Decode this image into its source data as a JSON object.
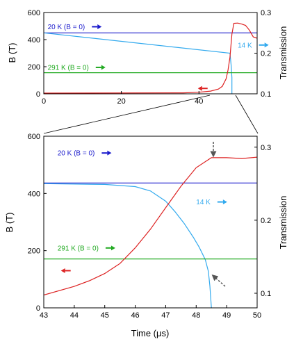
{
  "chart_data": [
    {
      "type": "line",
      "panel": "top",
      "xlabel": "",
      "ylabel": "B (T)",
      "y2label": "Transmission",
      "xlim": [
        0,
        55
      ],
      "ylim": [
        0,
        600
      ],
      "y2lim": [
        0.1,
        0.3
      ],
      "x_ticks": [
        0,
        20,
        40
      ],
      "x_tick_labels": [
        "0",
        "20",
        "40"
      ],
      "y_ticks": [
        0,
        200,
        400,
        600
      ],
      "y_tick_labels": [
        "0",
        "200",
        "400",
        "600"
      ],
      "y2_ticks": [
        0.1,
        0.2,
        0.3
      ],
      "y2_tick_labels": [
        "0.1",
        "0.2",
        "0.3"
      ],
      "series": [
        {
          "name": "20 K (B = 0)",
          "axis": "right",
          "color": "#1a1acc",
          "x": [
            0,
            55
          ],
          "y": [
            0.25,
            0.25
          ]
        },
        {
          "name": "",
          "axis": "right",
          "color": "#33aaee",
          "x": [
            0,
            48.0,
            48.3,
            48.5,
            48.5
          ],
          "y": [
            0.25,
            0.2,
            0.17,
            0.14,
            0.1
          ]
        },
        {
          "name": "291 K (B = 0)",
          "axis": "right",
          "color": "#22aa22",
          "x": [
            0,
            55
          ],
          "y": [
            0.152,
            0.152
          ]
        },
        {
          "name": "",
          "axis": "left",
          "color": "#dd2222",
          "x": [
            0,
            36,
            40,
            43,
            45,
            46,
            47,
            47.5,
            48,
            48.5,
            49,
            50,
            51,
            52,
            53,
            54,
            55
          ],
          "y": [
            5,
            7,
            12,
            20,
            35,
            55,
            110,
            175,
            270,
            440,
            520,
            522,
            515,
            505,
            470,
            420,
            410
          ]
        }
      ],
      "annotations": [
        {
          "text": "20 K (B = 0)",
          "x": 1,
          "y": 0.265,
          "color": "#1a1acc",
          "arrow": "right"
        },
        {
          "text": "291 K (B = 0)",
          "x": 1,
          "y": 0.165,
          "color": "#22aa22",
          "arrow": "right"
        },
        {
          "text": "14 K",
          "x": 50,
          "y": 0.22,
          "color": "#33aaee",
          "arrow": "right"
        }
      ]
    },
    {
      "type": "line",
      "panel": "bottom",
      "xlabel": "Time (μs)",
      "ylabel": "B (T)",
      "y2label": "Transmission",
      "xlim": [
        43,
        50
      ],
      "ylim": [
        0,
        600
      ],
      "y2lim": [
        0.08,
        0.315
      ],
      "x_ticks": [
        43,
        44,
        45,
        46,
        47,
        48,
        49,
        50
      ],
      "x_tick_labels": [
        "43",
        "44",
        "45",
        "46",
        "47",
        "48",
        "49",
        "50"
      ],
      "y_ticks": [
        0,
        200,
        400,
        600
      ],
      "y_tick_labels": [
        "0",
        "200",
        "400",
        "600"
      ],
      "y2_ticks": [
        0.1,
        0.2,
        0.3
      ],
      "y2_tick_labels": [
        "0.1",
        "0.2",
        "0.3"
      ],
      "series": [
        {
          "name": "20 K (B = 0)",
          "axis": "right",
          "color": "#1a1acc",
          "x": [
            43,
            50
          ],
          "y": [
            0.251,
            0.251
          ]
        },
        {
          "name": "",
          "axis": "right",
          "color": "#33aaee",
          "x": [
            43,
            45,
            46,
            46.5,
            47,
            47.3,
            47.6,
            47.9,
            48.1,
            48.3,
            48.4,
            48.45,
            48.5
          ],
          "y": [
            0.25,
            0.249,
            0.246,
            0.24,
            0.226,
            0.212,
            0.196,
            0.177,
            0.163,
            0.146,
            0.13,
            0.11,
            0.08
          ]
        },
        {
          "name": "291 K (B = 0)",
          "axis": "right",
          "color": "#22aa22",
          "x": [
            43,
            50
          ],
          "y": [
            0.147,
            0.147
          ]
        },
        {
          "name": "",
          "axis": "left",
          "color": "#dd2222",
          "x": [
            43,
            44,
            44.5,
            45,
            45.5,
            46,
            46.5,
            47,
            47.5,
            48,
            48.5,
            49,
            49.5,
            50
          ],
          "y": [
            45,
            75,
            95,
            120,
            155,
            210,
            275,
            350,
            425,
            490,
            525,
            525,
            522,
            527
          ]
        }
      ],
      "annotations": [
        {
          "text": "20 K (B = 0)",
          "x": 43.45,
          "y": 0.292,
          "color": "#1a1acc",
          "arrow": "right"
        },
        {
          "text": "291 K (B = 0)",
          "x": 43.45,
          "y": 0.162,
          "color": "#22aa22",
          "arrow": "right"
        },
        {
          "text": "14 K",
          "x": 48.0,
          "y": 0.225,
          "color": "#33aaee",
          "arrow": "right"
        }
      ]
    }
  ]
}
